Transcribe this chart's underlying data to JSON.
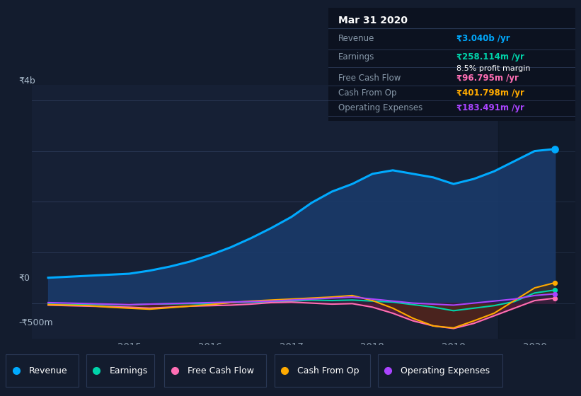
{
  "bg_color": "#131c2e",
  "plot_bg_color": "#162035",
  "grid_color": "#2a3855",
  "x_years": [
    2014.0,
    2014.25,
    2014.5,
    2014.75,
    2015.0,
    2015.25,
    2015.5,
    2015.75,
    2016.0,
    2016.25,
    2016.5,
    2016.75,
    2017.0,
    2017.25,
    2017.5,
    2017.75,
    2018.0,
    2018.25,
    2018.5,
    2018.75,
    2019.0,
    2019.25,
    2019.5,
    2019.75,
    2020.0,
    2020.25
  ],
  "revenue": [
    500,
    520,
    540,
    560,
    580,
    640,
    720,
    820,
    950,
    1100,
    1280,
    1480,
    1700,
    1980,
    2200,
    2350,
    2550,
    2620,
    2550,
    2480,
    2350,
    2450,
    2600,
    2800,
    3000,
    3040
  ],
  "earnings": [
    -20,
    -30,
    -25,
    -30,
    -35,
    -20,
    -15,
    -10,
    -20,
    10,
    20,
    30,
    40,
    60,
    50,
    60,
    40,
    20,
    -30,
    -80,
    -150,
    -100,
    -50,
    30,
    200,
    258
  ],
  "free_cash_flow": [
    -40,
    -50,
    -60,
    -70,
    -80,
    -100,
    -80,
    -60,
    -50,
    -40,
    -20,
    10,
    20,
    0,
    -20,
    -10,
    -80,
    -200,
    -350,
    -450,
    -500,
    -400,
    -250,
    -100,
    50,
    97
  ],
  "cash_from_op": [
    -30,
    -40,
    -50,
    -80,
    -100,
    -120,
    -90,
    -60,
    -30,
    10,
    40,
    60,
    80,
    100,
    120,
    150,
    50,
    -100,
    -300,
    -450,
    -490,
    -350,
    -200,
    50,
    300,
    402
  ],
  "operating_expenses": [
    10,
    0,
    -10,
    -20,
    -30,
    -20,
    -10,
    0,
    10,
    20,
    30,
    40,
    60,
    80,
    100,
    120,
    80,
    40,
    0,
    -20,
    -40,
    0,
    40,
    80,
    150,
    183
  ],
  "revenue_color": "#00aaff",
  "revenue_fill_color": "#1a3a6a",
  "earnings_color": "#00d4aa",
  "free_cash_flow_color": "#ff6eb4",
  "cash_from_op_color": "#ffaa00",
  "operating_expenses_color": "#aa44ff",
  "earnings_fill_color": "#1a4a3a",
  "free_cash_flow_fill_neg_color": "#6a1a3a",
  "cash_from_op_fill_neg_color": "#4a2a0a",
  "operating_expenses_fill_color": "#2a1550",
  "y_label_4b": "₹4b",
  "y_label_0": "₹0",
  "y_label_neg500": "-₹500m",
  "ylim_min": -700,
  "ylim_max": 4300,
  "xlim_min": 2013.8,
  "xlim_max": 2020.5,
  "xticks": [
    2015,
    2016,
    2017,
    2018,
    2019,
    2020
  ],
  "info_title": "Mar 31 2020",
  "info_revenue_label": "Revenue",
  "info_revenue_value": "₹3.040b /yr",
  "info_earnings_label": "Earnings",
  "info_earnings_value": "₹258.114m /yr",
  "info_profit_margin": "8.5% profit margin",
  "info_fcf_label": "Free Cash Flow",
  "info_fcf_value": "₹96.795m /yr",
  "info_cashop_label": "Cash From Op",
  "info_cashop_value": "₹401.798m /yr",
  "info_opex_label": "Operating Expenses",
  "info_opex_value": "₹183.491m /yr",
  "legend_items": [
    "Revenue",
    "Earnings",
    "Free Cash Flow",
    "Cash From Op",
    "Operating Expenses"
  ],
  "legend_colors": [
    "#00aaff",
    "#00d4aa",
    "#ff6eb4",
    "#ffaa00",
    "#aa44ff"
  ],
  "info_panel_bg": "#0c1220",
  "info_sep_color": "#2a3855",
  "info_label_color": "#8899aa",
  "info_value_white": "#ffffff",
  "info_bold_pct_color": "#ffffff"
}
